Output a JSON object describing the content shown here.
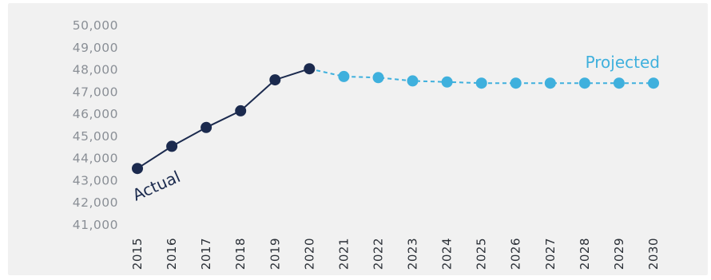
{
  "chart_data": {
    "type": "line",
    "title": "",
    "xlabel": "",
    "ylabel": "",
    "ylim": [
      41000,
      50000
    ],
    "yticks": [
      "50,000",
      "49,000",
      "48,000",
      "47,000",
      "46,000",
      "45,000",
      "44,000",
      "43,000",
      "42,000",
      "41,000"
    ],
    "categories": [
      "2015",
      "2016",
      "2017",
      "2018",
      "2019",
      "2020",
      "2021",
      "2022",
      "2023",
      "2024",
      "2025",
      "2026",
      "2027",
      "2028",
      "2029",
      "2030"
    ],
    "grid": false,
    "series": [
      {
        "name": "Actual",
        "color": "#1b2a4e",
        "style": "solid",
        "x": [
          "2015",
          "2016",
          "2017",
          "2018",
          "2019",
          "2020"
        ],
        "values": [
          43550,
          44550,
          45400,
          46150,
          47550,
          48050
        ]
      },
      {
        "name": "Projected",
        "color": "#3fb0dd",
        "style": "dashed",
        "x": [
          "2020",
          "2021",
          "2022",
          "2023",
          "2024",
          "2025",
          "2026",
          "2027",
          "2028",
          "2029",
          "2030"
        ],
        "values": [
          48050,
          47700,
          47650,
          47500,
          47450,
          47400,
          47400,
          47400,
          47400,
          47400,
          47400
        ]
      }
    ]
  }
}
